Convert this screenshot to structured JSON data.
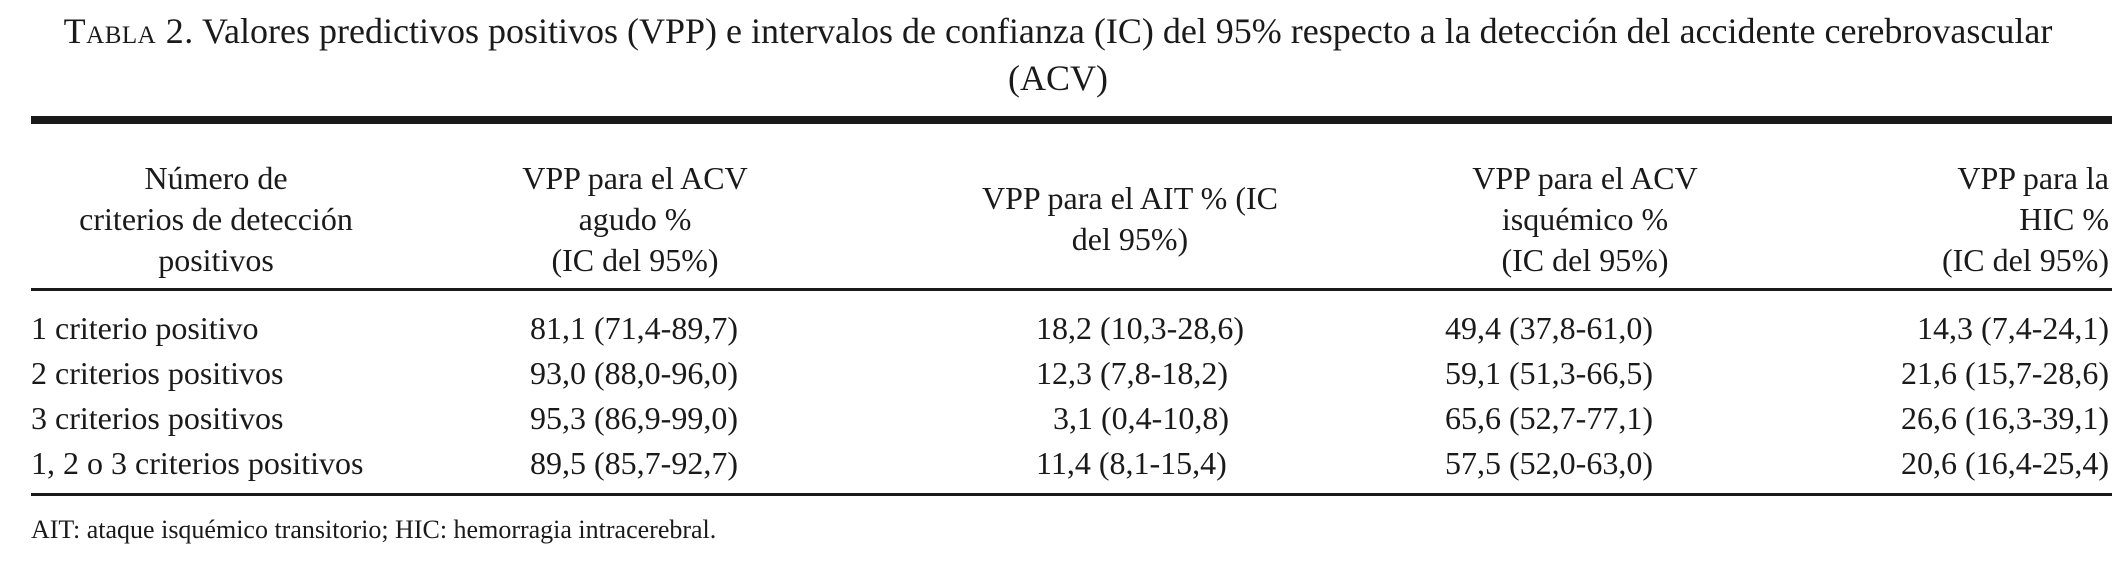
{
  "caption": {
    "label": "Tabla 2.",
    "text": " Valores predictivos positivos (VPP) e intervalos de confianza (IC) del 95% respecto a la detección del accidente cerebrovascular (ACV)"
  },
  "table": {
    "headers": [
      "Número de\ncriterios de detección\npositivos",
      "VPP para el ACV\nagudo %\n(IC del 95%)",
      "VPP para el AIT % (IC\ndel 95%)",
      "VPP para el ACV\nisquémico %\n(IC del 95%)",
      "VPP para la\nHIC %\n(IC del 95%)"
    ],
    "rows": [
      [
        "1 criterio positivo",
        "81,1 (71,4-89,7)",
        "18,2 (10,3-28,6)",
        "49,4 (37,8-61,0)",
        "14,3 (7,4-24,1)"
      ],
      [
        "2 criterios positivos",
        "93,0 (88,0-96,0)",
        "12,3 (7,8-18,2)",
        "59,1 (51,3-66,5)",
        "21,6 (15,7-28,6)"
      ],
      [
        "3 criterios positivos",
        "95,3 (86,9-99,0)",
        "3,1 (0,4-10,8)",
        "65,6 (52,7-77,1)",
        "26,6 (16,3-39,1)"
      ],
      [
        "1, 2 o 3 criterios positivos",
        "89,5 (85,7-92,7)",
        "11,4 (8,1-15,4)",
        "57,5 (52,0-63,0)",
        "20,6 (16,4-25,4)"
      ]
    ]
  },
  "footnote": "AIT: ataque isquémico transitorio; HIC: hemorragia intracerebral."
}
